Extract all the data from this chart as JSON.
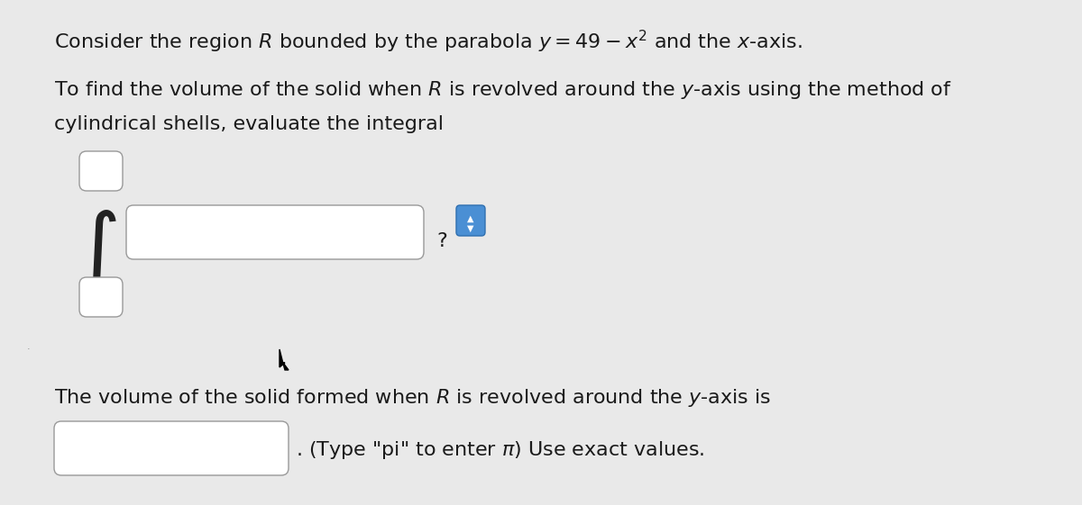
{
  "background_color": "#e9e9e9",
  "title_line1": "Consider the region $R$ bounded by the parabola $y = 49 - x^2$ and the $x$-axis.",
  "para1_line1": "To find the volume of the solid when $R$ is revolved around the $y$-axis using the method of",
  "para1_line2": "cylindrical shells, evaluate the integral",
  "para2_line1": "The volume of the solid formed when $R$ is revolved around the $y$-axis is",
  "para2_line2": ". (Type \"pi\" to enter $\\pi$) Use exact values.",
  "question_mark_text": "?",
  "text_color": "#1a1a1a",
  "box_facecolor": "#ffffff",
  "box_edgecolor": "#999999",
  "integral_color": "#222222",
  "blue_box_facecolor": "#4a8fd4",
  "blue_box_edgecolor": "#3070b0",
  "font_size_main": 16,
  "font_size_integral": 50
}
